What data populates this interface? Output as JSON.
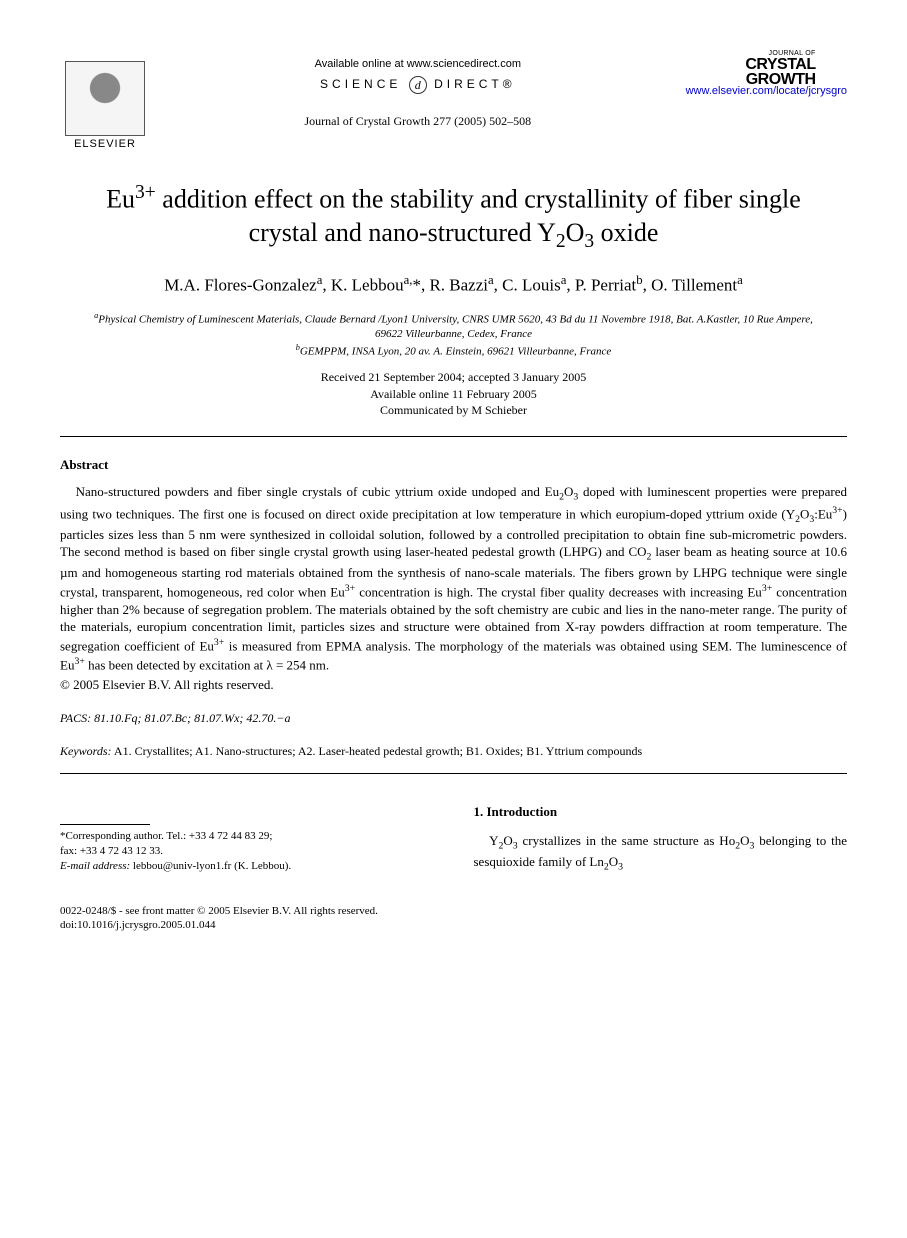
{
  "header": {
    "publisher": "ELSEVIER",
    "available_online": "Available online at www.sciencedirect.com",
    "science_direct_pre": "SCIENCE",
    "science_direct_post": "DIRECT®",
    "journal_ref": "Journal of Crystal Growth 277 (2005) 502–508",
    "journal_logo_small": "JOURNAL OF",
    "journal_logo_big1": "CRYSTAL",
    "journal_logo_big2": "GROWTH",
    "journal_link": "www.elsevier.com/locate/jcrysgro"
  },
  "title": {
    "html": "Eu<sup>3+</sup> addition effect on the stability and crystallinity of fiber single crystal and nano-structured Y<sub>2</sub>O<sub>3</sub> oxide"
  },
  "authors": {
    "html": "M.A. Flores-Gonzalez<sup>a</sup>, K. Lebbou<sup>a,</sup>*, R. Bazzi<sup>a</sup>, C. Louis<sup>a</sup>, P. Perriat<sup>b</sup>, O. Tillement<sup>a</sup>"
  },
  "affiliations": {
    "a_html": "<sup>a</sup>Physical Chemistry of Luminescent Materials, Claude Bernard /Lyon1 University, CNRS UMR 5620, 43 Bd du 11 Novembre 1918, Bat. A.Kastler, 10 Rue Ampere, 69622 Villeurbanne, Cedex, France",
    "b_html": "<sup>b</sup>GEMPPM, INSA Lyon, 20 av. A. Einstein, 69621 Villeurbanne, France"
  },
  "dates": {
    "received": "Received 21 September 2004; accepted 3 January 2005",
    "online": "Available online 11 February 2005",
    "communicated": "Communicated by M Schieber"
  },
  "abstract": {
    "heading": "Abstract",
    "body_html": "Nano-structured powders and fiber single crystals of cubic yttrium oxide undoped and Eu<sub>2</sub>O<sub>3</sub> doped with luminescent properties were prepared using two techniques. The first one is focused on direct oxide precipitation at low temperature in which europium-doped yttrium oxide (Y<sub>2</sub>O<sub>3</sub>:Eu<sup>3+</sup>) particles sizes less than 5 nm were synthesized in colloidal solution, followed by a controlled precipitation to obtain fine sub-micrometric powders. The second method is based on fiber single crystal growth using laser-heated pedestal growth (LHPG) and CO<sub>2</sub> laser beam as heating source at 10.6 µm and homogeneous starting rod materials obtained from the synthesis of nano-scale materials. The fibers grown by LHPG technique were single crystal, transparent, homogeneous, red color when Eu<sup>3+</sup> concentration is high. The crystal fiber quality decreases with increasing Eu<sup>3+</sup> concentration higher than 2% because of segregation problem. The materials obtained by the soft chemistry are cubic and lies in the nano-meter range. The purity of the materials, europium concentration limit, particles sizes and structure were obtained from X-ray powders diffraction at room temperature. The segregation coefficient of Eu<sup>3+</sup> is measured from EPMA analysis. The morphology of the materials was obtained using SEM. The luminescence of Eu<sup>3+</sup> has been detected by excitation at λ = 254 nm.",
    "copyright": "© 2005 Elsevier B.V. All rights reserved."
  },
  "pacs": {
    "label": "PACS:",
    "value": " 81.10.Fq; 81.07.Bc; 81.07.Wx; 42.70.−a"
  },
  "keywords": {
    "label": "Keywords:",
    "value": " A1. Crystallites; A1. Nano-structures; A2. Laser-heated pedestal growth; B1. Oxides; B1. Yttrium compounds"
  },
  "corresponding": {
    "line1": "*Corresponding author. Tel.: +33 4 72 44 83 29;",
    "line2": "fax: +33 4 72 43 12 33.",
    "email_label": "E-mail address:",
    "email_value": " lebbou@univ-lyon1.fr (K. Lebbou)."
  },
  "intro": {
    "heading": "1. Introduction",
    "body_html": "Y<sub>2</sub>O<sub>3</sub> crystallizes in the same structure as Ho<sub>2</sub>O<sub>3</sub> belonging to the sesquioxide family of Ln<sub>2</sub>O<sub>3</sub>"
  },
  "footer": {
    "line1": "0022-0248/$ - see front matter © 2005 Elsevier B.V. All rights reserved.",
    "line2": "doi:10.1016/j.jcrysgro.2005.01.044"
  },
  "style": {
    "background_color": "#ffffff",
    "text_color": "#000000",
    "link_color": "#0000cc",
    "title_fontsize": 26,
    "body_fontsize": 13,
    "small_fontsize": 11
  }
}
